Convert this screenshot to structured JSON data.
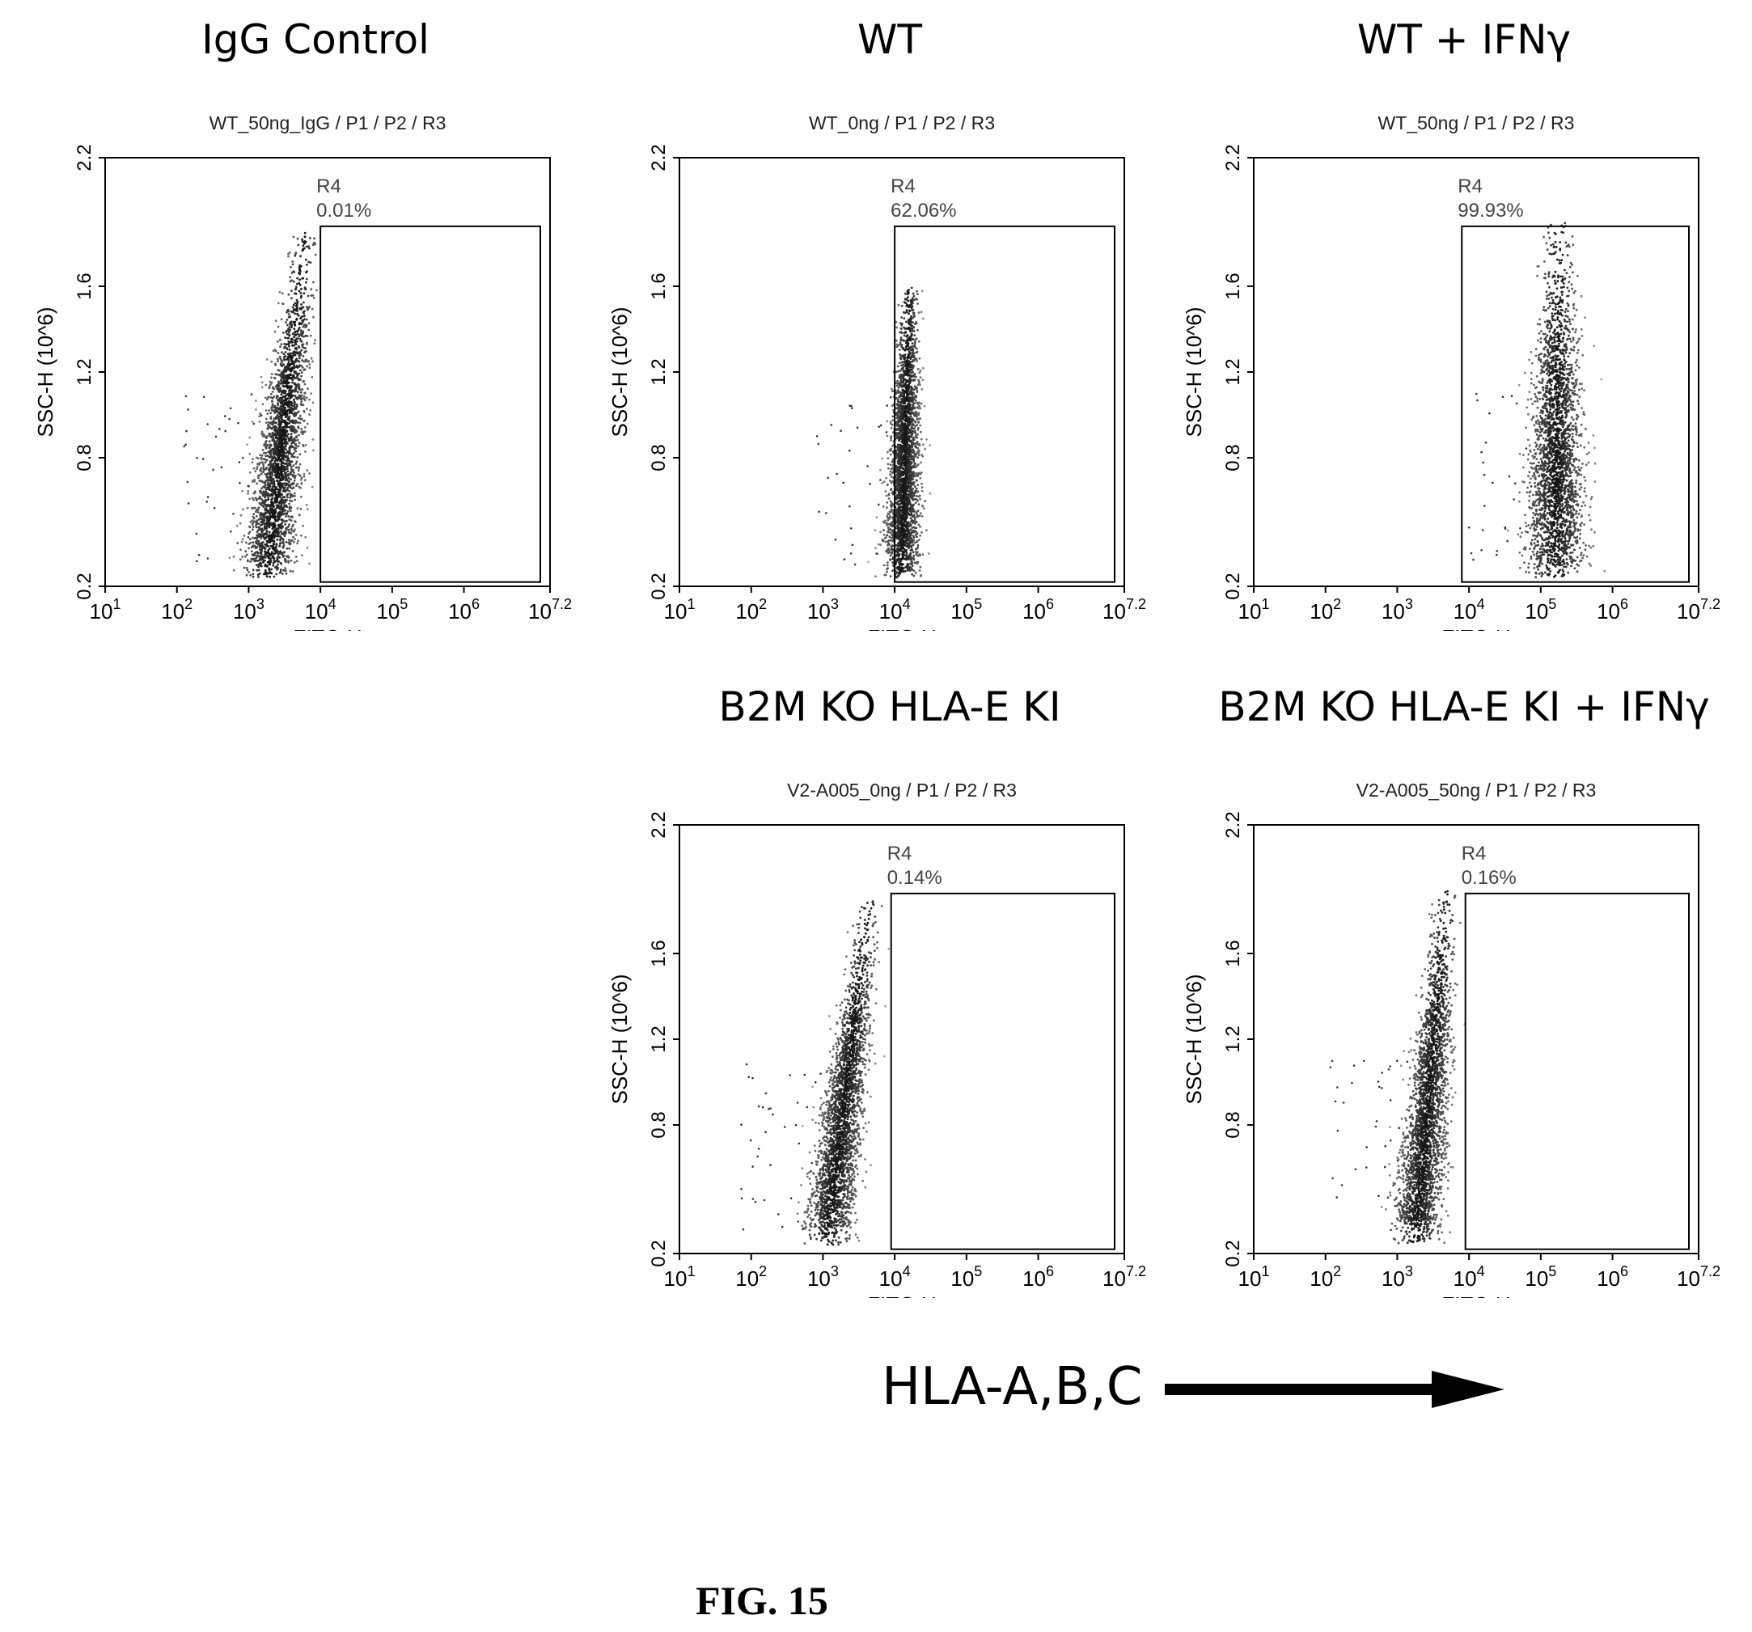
{
  "figure": {
    "caption": "FIG. 15",
    "axis_arrow_label": "HLA-A,B,C"
  },
  "chart_data": [
    {
      "type": "scatter",
      "panel_title": "IgG Control",
      "sample_label": "WT_50ng_IgG / P1 / P2 / R3",
      "xlabel": "FITC-H",
      "ylabel": "SSC-H (10^6)",
      "x_scale": "log",
      "xlim": [
        10,
        15848932
      ],
      "ylim": [
        0.2,
        2.2
      ],
      "x_ticks": [
        {
          "value": 10,
          "exp": "1"
        },
        {
          "value": 100,
          "exp": "2"
        },
        {
          "value": 1000,
          "exp": "3"
        },
        {
          "value": 10000,
          "exp": "4"
        },
        {
          "value": 100000,
          "exp": "5"
        },
        {
          "value": 1000000,
          "exp": "6"
        },
        {
          "value": 15848932,
          "exp": "7.2"
        }
      ],
      "y_ticks": [
        "0.2",
        "0.8",
        "1.2",
        "1.6",
        "2.2"
      ],
      "gate": {
        "name": "R4",
        "percent": "0.01%",
        "x_range": [
          10000,
          15848932
        ],
        "y_range": [
          0.22,
          1.88
        ]
      },
      "population": {
        "center_log10_x": 3.25,
        "center_y": 0.72,
        "spread_log10_x": 0.32,
        "y_top": 1.85,
        "y_bottom": 0.24,
        "tilt": 0.55
      }
    },
    {
      "type": "scatter",
      "panel_title": "WT",
      "sample_label": "WT_0ng / P1 / P2 / R3",
      "xlabel": "FITC-H",
      "ylabel": "SSC-H (10^6)",
      "x_scale": "log",
      "xlim": [
        10,
        15848932
      ],
      "ylim": [
        0.2,
        2.2
      ],
      "x_ticks": [
        {
          "value": 10,
          "exp": "1"
        },
        {
          "value": 100,
          "exp": "2"
        },
        {
          "value": 1000,
          "exp": "3"
        },
        {
          "value": 10000,
          "exp": "4"
        },
        {
          "value": 100000,
          "exp": "5"
        },
        {
          "value": 1000000,
          "exp": "6"
        },
        {
          "value": 15848932,
          "exp": "7.2"
        }
      ],
      "y_ticks": [
        "0.2",
        "0.8",
        "1.2",
        "1.6",
        "2.2"
      ],
      "gate": {
        "name": "R4",
        "percent": "62.06%",
        "x_range": [
          10000,
          15848932
        ],
        "y_range": [
          0.22,
          1.88
        ]
      },
      "population": {
        "center_log10_x": 4.1,
        "center_y": 0.62,
        "spread_log10_x": 0.22,
        "y_top": 1.6,
        "y_bottom": 0.24,
        "tilt": 0.1
      }
    },
    {
      "type": "scatter",
      "panel_title": "WT + IFNγ",
      "sample_label": "WT_50ng / P1 / P2 / R3",
      "xlabel": "FITC-H",
      "ylabel": "SSC-H (10^6)",
      "x_scale": "log",
      "xlim": [
        10,
        15848932
      ],
      "ylim": [
        0.2,
        2.2
      ],
      "x_ticks": [
        {
          "value": 10,
          "exp": "1"
        },
        {
          "value": 100,
          "exp": "2"
        },
        {
          "value": 1000,
          "exp": "3"
        },
        {
          "value": 10000,
          "exp": "4"
        },
        {
          "value": 100000,
          "exp": "5"
        },
        {
          "value": 1000000,
          "exp": "6"
        },
        {
          "value": 15848932,
          "exp": "7.2"
        }
      ],
      "y_ticks": [
        "0.2",
        "0.8",
        "1.2",
        "1.6",
        "2.2"
      ],
      "gate": {
        "name": "R4",
        "percent": "99.93%",
        "x_range": [
          7943,
          15848932
        ],
        "y_range": [
          0.22,
          1.88
        ]
      },
      "population": {
        "center_log10_x": 5.2,
        "center_y": 0.75,
        "spread_log10_x": 0.38,
        "y_top": 1.9,
        "y_bottom": 0.24,
        "tilt": 0.05
      }
    },
    {
      "type": "scatter",
      "panel_title": "B2M KO HLA-E KI",
      "sample_label": "V2-A005_0ng / P1 / P2 / R3",
      "xlabel": "FITC-H",
      "ylabel": "SSC-H (10^6)",
      "x_scale": "log",
      "xlim": [
        10,
        15848932
      ],
      "ylim": [
        0.2,
        2.2
      ],
      "x_ticks": [
        {
          "value": 10,
          "exp": "1"
        },
        {
          "value": 100,
          "exp": "2"
        },
        {
          "value": 1000,
          "exp": "3"
        },
        {
          "value": 10000,
          "exp": "4"
        },
        {
          "value": 100000,
          "exp": "5"
        },
        {
          "value": 1000000,
          "exp": "6"
        },
        {
          "value": 15848932,
          "exp": "7.2"
        }
      ],
      "y_ticks": [
        "0.2",
        "0.8",
        "1.2",
        "1.6",
        "2.2"
      ],
      "gate": {
        "name": "R4",
        "percent": "0.14%",
        "x_range": [
          8913,
          15848932
        ],
        "y_range": [
          0.22,
          1.88
        ]
      },
      "population": {
        "center_log10_x": 3.05,
        "center_y": 0.72,
        "spread_log10_x": 0.3,
        "y_top": 1.85,
        "y_bottom": 0.24,
        "tilt": 0.6
      }
    },
    {
      "type": "scatter",
      "panel_title": "B2M KO HLA-E KI + IFNγ",
      "sample_label": "V2-A005_50ng / P1 / P2 / R3",
      "xlabel": "FITC-H",
      "ylabel": "SSC-H (10^6)",
      "x_scale": "log",
      "xlim": [
        10,
        15848932
      ],
      "ylim": [
        0.2,
        2.2
      ],
      "x_ticks": [
        {
          "value": 10,
          "exp": "1"
        },
        {
          "value": 100,
          "exp": "2"
        },
        {
          "value": 1000,
          "exp": "3"
        },
        {
          "value": 10000,
          "exp": "4"
        },
        {
          "value": 100000,
          "exp": "5"
        },
        {
          "value": 1000000,
          "exp": "6"
        },
        {
          "value": 15848932,
          "exp": "7.2"
        }
      ],
      "y_ticks": [
        "0.2",
        "0.8",
        "1.2",
        "1.6",
        "2.2"
      ],
      "gate": {
        "name": "R4",
        "percent": "0.16%",
        "x_range": [
          8913,
          15848932
        ],
        "y_range": [
          0.22,
          1.88
        ]
      },
      "population": {
        "center_log10_x": 3.25,
        "center_y": 0.72,
        "spread_log10_x": 0.3,
        "y_top": 1.9,
        "y_bottom": 0.24,
        "tilt": 0.45
      }
    }
  ]
}
